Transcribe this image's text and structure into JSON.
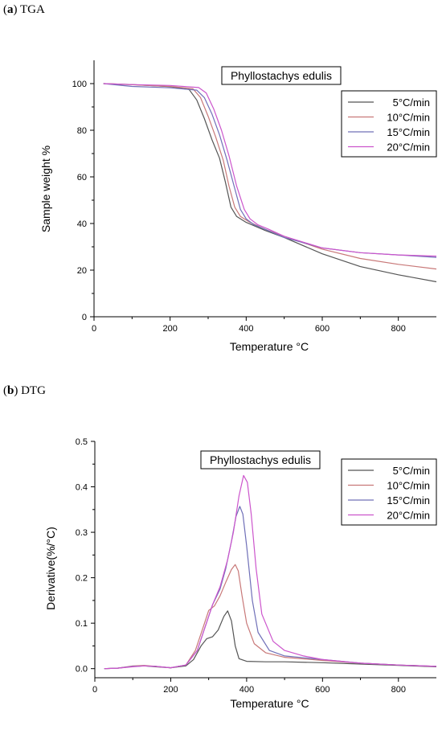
{
  "panels": {
    "a": {
      "tag": "a",
      "name": "TGA"
    },
    "b": {
      "tag": "b",
      "name": "DTG"
    }
  },
  "chart_data": [
    {
      "type": "line",
      "id": "tga",
      "title": "Phyllostachys edulis",
      "xlabel": "Temperature °C",
      "ylabel": "Sample weight %",
      "xlim": [
        0,
        900
      ],
      "ylim": [
        0,
        110
      ],
      "xticks": [
        0,
        200,
        400,
        600,
        800
      ],
      "yticks": [
        0,
        20,
        40,
        60,
        80,
        100
      ],
      "legend_position": "top-right",
      "series": [
        {
          "name": "5°C/min",
          "color": "#555555",
          "x": [
            25,
            100,
            200,
            250,
            270,
            290,
            310,
            330,
            345,
            360,
            375,
            400,
            450,
            500,
            600,
            700,
            800,
            900
          ],
          "y": [
            100,
            99.6,
            98.7,
            97.5,
            93,
            85,
            76,
            68,
            58,
            47,
            43,
            40.5,
            37,
            34,
            27,
            21.5,
            18,
            15
          ]
        },
        {
          "name": "10°C/min",
          "color": "#c87878",
          "x": [
            25,
            100,
            200,
            260,
            280,
            300,
            320,
            340,
            355,
            370,
            385,
            410,
            450,
            500,
            600,
            700,
            800,
            900
          ],
          "y": [
            100,
            99.5,
            98.8,
            97.8,
            94,
            86,
            77,
            67,
            56,
            47,
            43,
            40.5,
            37.5,
            34.5,
            29,
            25,
            22.5,
            20.5
          ]
        },
        {
          "name": "15°C/min",
          "color": "#7070b8",
          "x": [
            25,
            100,
            200,
            270,
            290,
            310,
            330,
            350,
            370,
            385,
            400,
            420,
            450,
            500,
            600,
            700,
            800,
            900
          ],
          "y": [
            100,
            98.8,
            98.2,
            97.2,
            94,
            87,
            78,
            67,
            55,
            46,
            42,
            39.5,
            37.5,
            34,
            29.5,
            27.5,
            26.5,
            25.5
          ]
        },
        {
          "name": "20°C/min",
          "color": "#cc55cc",
          "x": [
            25,
            100,
            200,
            275,
            295,
            315,
            335,
            355,
            375,
            395,
            410,
            430,
            460,
            500,
            600,
            700,
            800,
            900
          ],
          "y": [
            100,
            99.6,
            99.2,
            98.3,
            96,
            89,
            80,
            69,
            56,
            46,
            42,
            39.5,
            37.5,
            34.5,
            29.5,
            27.5,
            26.5,
            26
          ]
        }
      ]
    },
    {
      "type": "line",
      "id": "dtg",
      "title": "Phyllostachys edulis",
      "xlabel": "Temperature °C",
      "ylabel": "Derivative(%/°C)",
      "xlim": [
        0,
        900
      ],
      "ylim": [
        -0.02,
        0.5
      ],
      "xticks": [
        0,
        200,
        400,
        600,
        800
      ],
      "yticks": [
        0.0,
        0.1,
        0.2,
        0.3,
        0.4,
        0.5
      ],
      "ytick_labels": [
        "0.0",
        "0.1",
        "0.2",
        "0.3",
        "0.4",
        "0.5"
      ],
      "legend_position": "top-right",
      "series": [
        {
          "name": "5°C/min",
          "color": "#555555",
          "x": [
            25,
            60,
            100,
            130,
            160,
            200,
            240,
            260,
            280,
            295,
            310,
            325,
            340,
            350,
            360,
            370,
            380,
            400,
            450,
            500,
            600,
            700,
            800,
            900
          ],
          "y": [
            0,
            0.001,
            0.005,
            0.006,
            0.004,
            0.002,
            0.006,
            0.02,
            0.05,
            0.066,
            0.07,
            0.085,
            0.115,
            0.127,
            0.105,
            0.05,
            0.022,
            0.016,
            0.015,
            0.015,
            0.013,
            0.01,
            0.007,
            0.004
          ]
        },
        {
          "name": "10°C/min",
          "color": "#c87878",
          "x": [
            25,
            60,
            100,
            130,
            160,
            200,
            240,
            265,
            285,
            300,
            315,
            330,
            345,
            360,
            370,
            378,
            388,
            400,
            420,
            450,
            500,
            600,
            700,
            800,
            900
          ],
          "y": [
            0,
            0.001,
            0.006,
            0.007,
            0.005,
            0.002,
            0.008,
            0.04,
            0.09,
            0.128,
            0.138,
            0.16,
            0.19,
            0.218,
            0.229,
            0.215,
            0.16,
            0.1,
            0.055,
            0.035,
            0.025,
            0.018,
            0.012,
            0.008,
            0.005
          ]
        },
        {
          "name": "15°C/min",
          "color": "#7070b8",
          "x": [
            25,
            60,
            100,
            130,
            160,
            200,
            240,
            270,
            290,
            310,
            330,
            345,
            360,
            372,
            382,
            390,
            400,
            415,
            430,
            460,
            500,
            600,
            700,
            800,
            900
          ],
          "y": [
            0,
            0.001,
            0.005,
            0.006,
            0.005,
            0.002,
            0.008,
            0.04,
            0.09,
            0.14,
            0.175,
            0.22,
            0.28,
            0.335,
            0.357,
            0.34,
            0.27,
            0.15,
            0.08,
            0.04,
            0.028,
            0.02,
            0.012,
            0.008,
            0.005
          ]
        },
        {
          "name": "20°C/min",
          "color": "#cc55cc",
          "x": [
            25,
            60,
            100,
            130,
            160,
            200,
            240,
            270,
            290,
            310,
            330,
            350,
            365,
            380,
            392,
            402,
            412,
            425,
            440,
            470,
            500,
            550,
            600,
            700,
            800,
            900
          ],
          "y": [
            0,
            0.001,
            0.004,
            0.006,
            0.005,
            0.002,
            0.008,
            0.04,
            0.09,
            0.14,
            0.18,
            0.24,
            0.3,
            0.38,
            0.425,
            0.41,
            0.34,
            0.22,
            0.12,
            0.06,
            0.04,
            0.028,
            0.02,
            0.012,
            0.008,
            0.005
          ]
        }
      ]
    }
  ]
}
